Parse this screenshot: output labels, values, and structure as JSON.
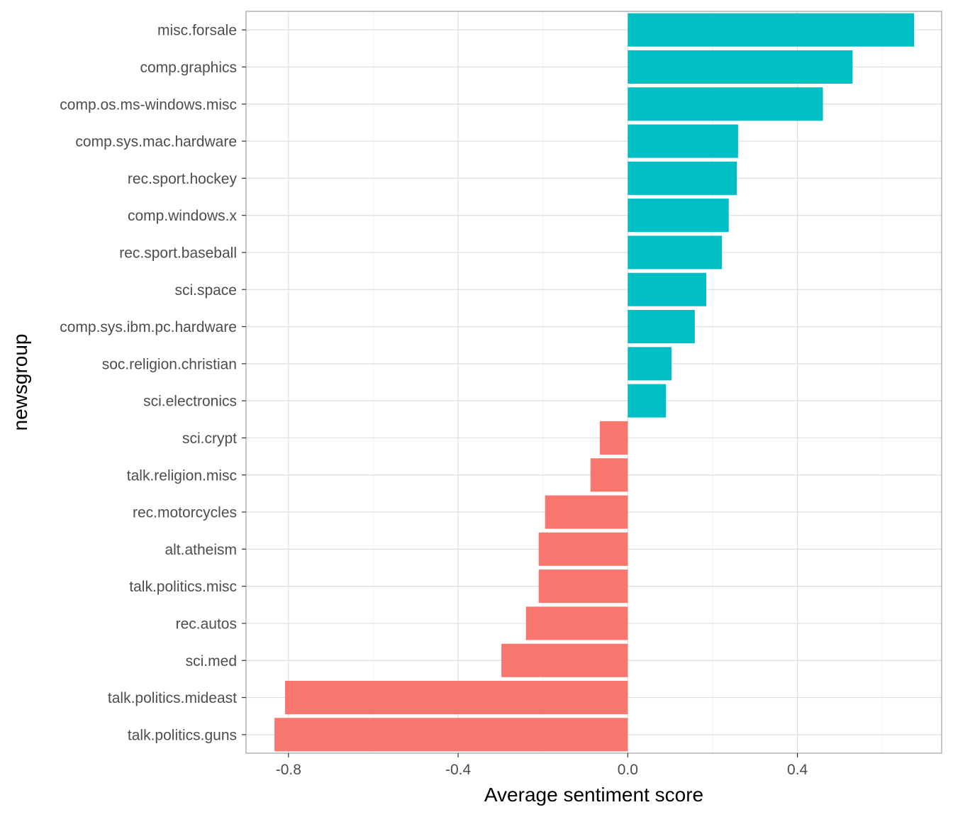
{
  "chart_data": {
    "type": "bar",
    "orientation": "horizontal",
    "title": "",
    "xlabel": "Average sentiment score",
    "ylabel": "newsgroup",
    "xlim": [
      -0.9,
      0.74
    ],
    "xticks": [
      -0.8,
      -0.4,
      0.0,
      0.4
    ],
    "xtick_labels": [
      "-0.8",
      "-0.4",
      "0.0",
      "0.4"
    ],
    "grid": true,
    "legend": "none",
    "colors": {
      "positive": "#00bfc4",
      "negative": "#f8766d"
    },
    "categories": [
      "misc.forsale",
      "comp.graphics",
      "comp.os.ms-windows.misc",
      "comp.sys.mac.hardware",
      "rec.sport.hockey",
      "comp.windows.x",
      "rec.sport.baseball",
      "sci.space",
      "comp.sys.ibm.pc.hardware",
      "soc.religion.christian",
      "sci.electronics",
      "sci.crypt",
      "talk.religion.misc",
      "rec.motorcycles",
      "alt.atheism",
      "talk.politics.misc",
      "rec.autos",
      "sci.med",
      "talk.politics.mideast",
      "talk.politics.guns"
    ],
    "values": [
      0.675,
      0.53,
      0.46,
      0.26,
      0.257,
      0.238,
      0.222,
      0.185,
      0.158,
      0.103,
      0.09,
      -0.066,
      -0.088,
      -0.195,
      -0.21,
      -0.21,
      -0.24,
      -0.298,
      -0.808,
      -0.833
    ]
  }
}
